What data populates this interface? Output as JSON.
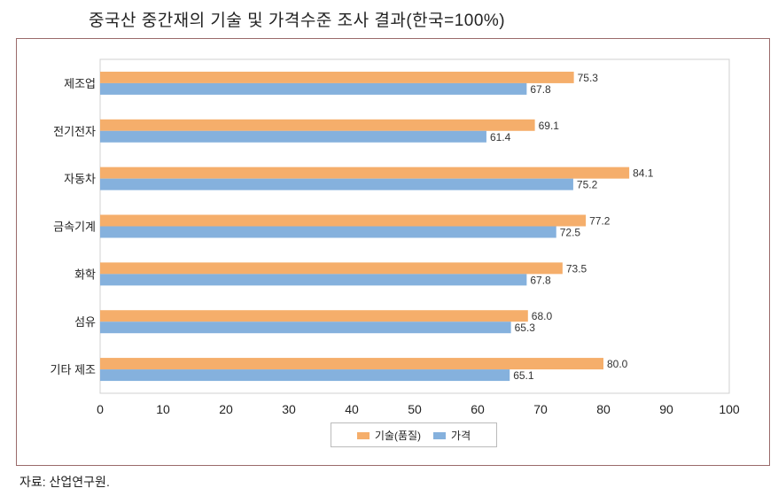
{
  "chart_data": {
    "type": "bar",
    "orientation": "horizontal",
    "title": "중국산 중간재의 기술 및 가격수준 조사 결과(한국=100%)",
    "categories": [
      "제조업",
      "전기전자",
      "자동차",
      "금속기계",
      "화학",
      "섬유",
      "기타 제조"
    ],
    "series": [
      {
        "name": "기술(품질)",
        "color": "#f5ae6b",
        "values": [
          75.3,
          69.1,
          84.1,
          77.2,
          73.5,
          68.0,
          80.0
        ]
      },
      {
        "name": "가격",
        "color": "#85b1dd",
        "values": [
          67.8,
          61.4,
          75.2,
          72.5,
          67.8,
          65.3,
          65.1
        ]
      }
    ],
    "xlim": [
      0,
      100
    ],
    "xticks": [
      "0",
      "10",
      "20",
      "30",
      "40",
      "50",
      "60",
      "70",
      "80",
      "90",
      "100"
    ],
    "grid": false,
    "legend": "bottom",
    "source": "자료: 산업연구원."
  }
}
